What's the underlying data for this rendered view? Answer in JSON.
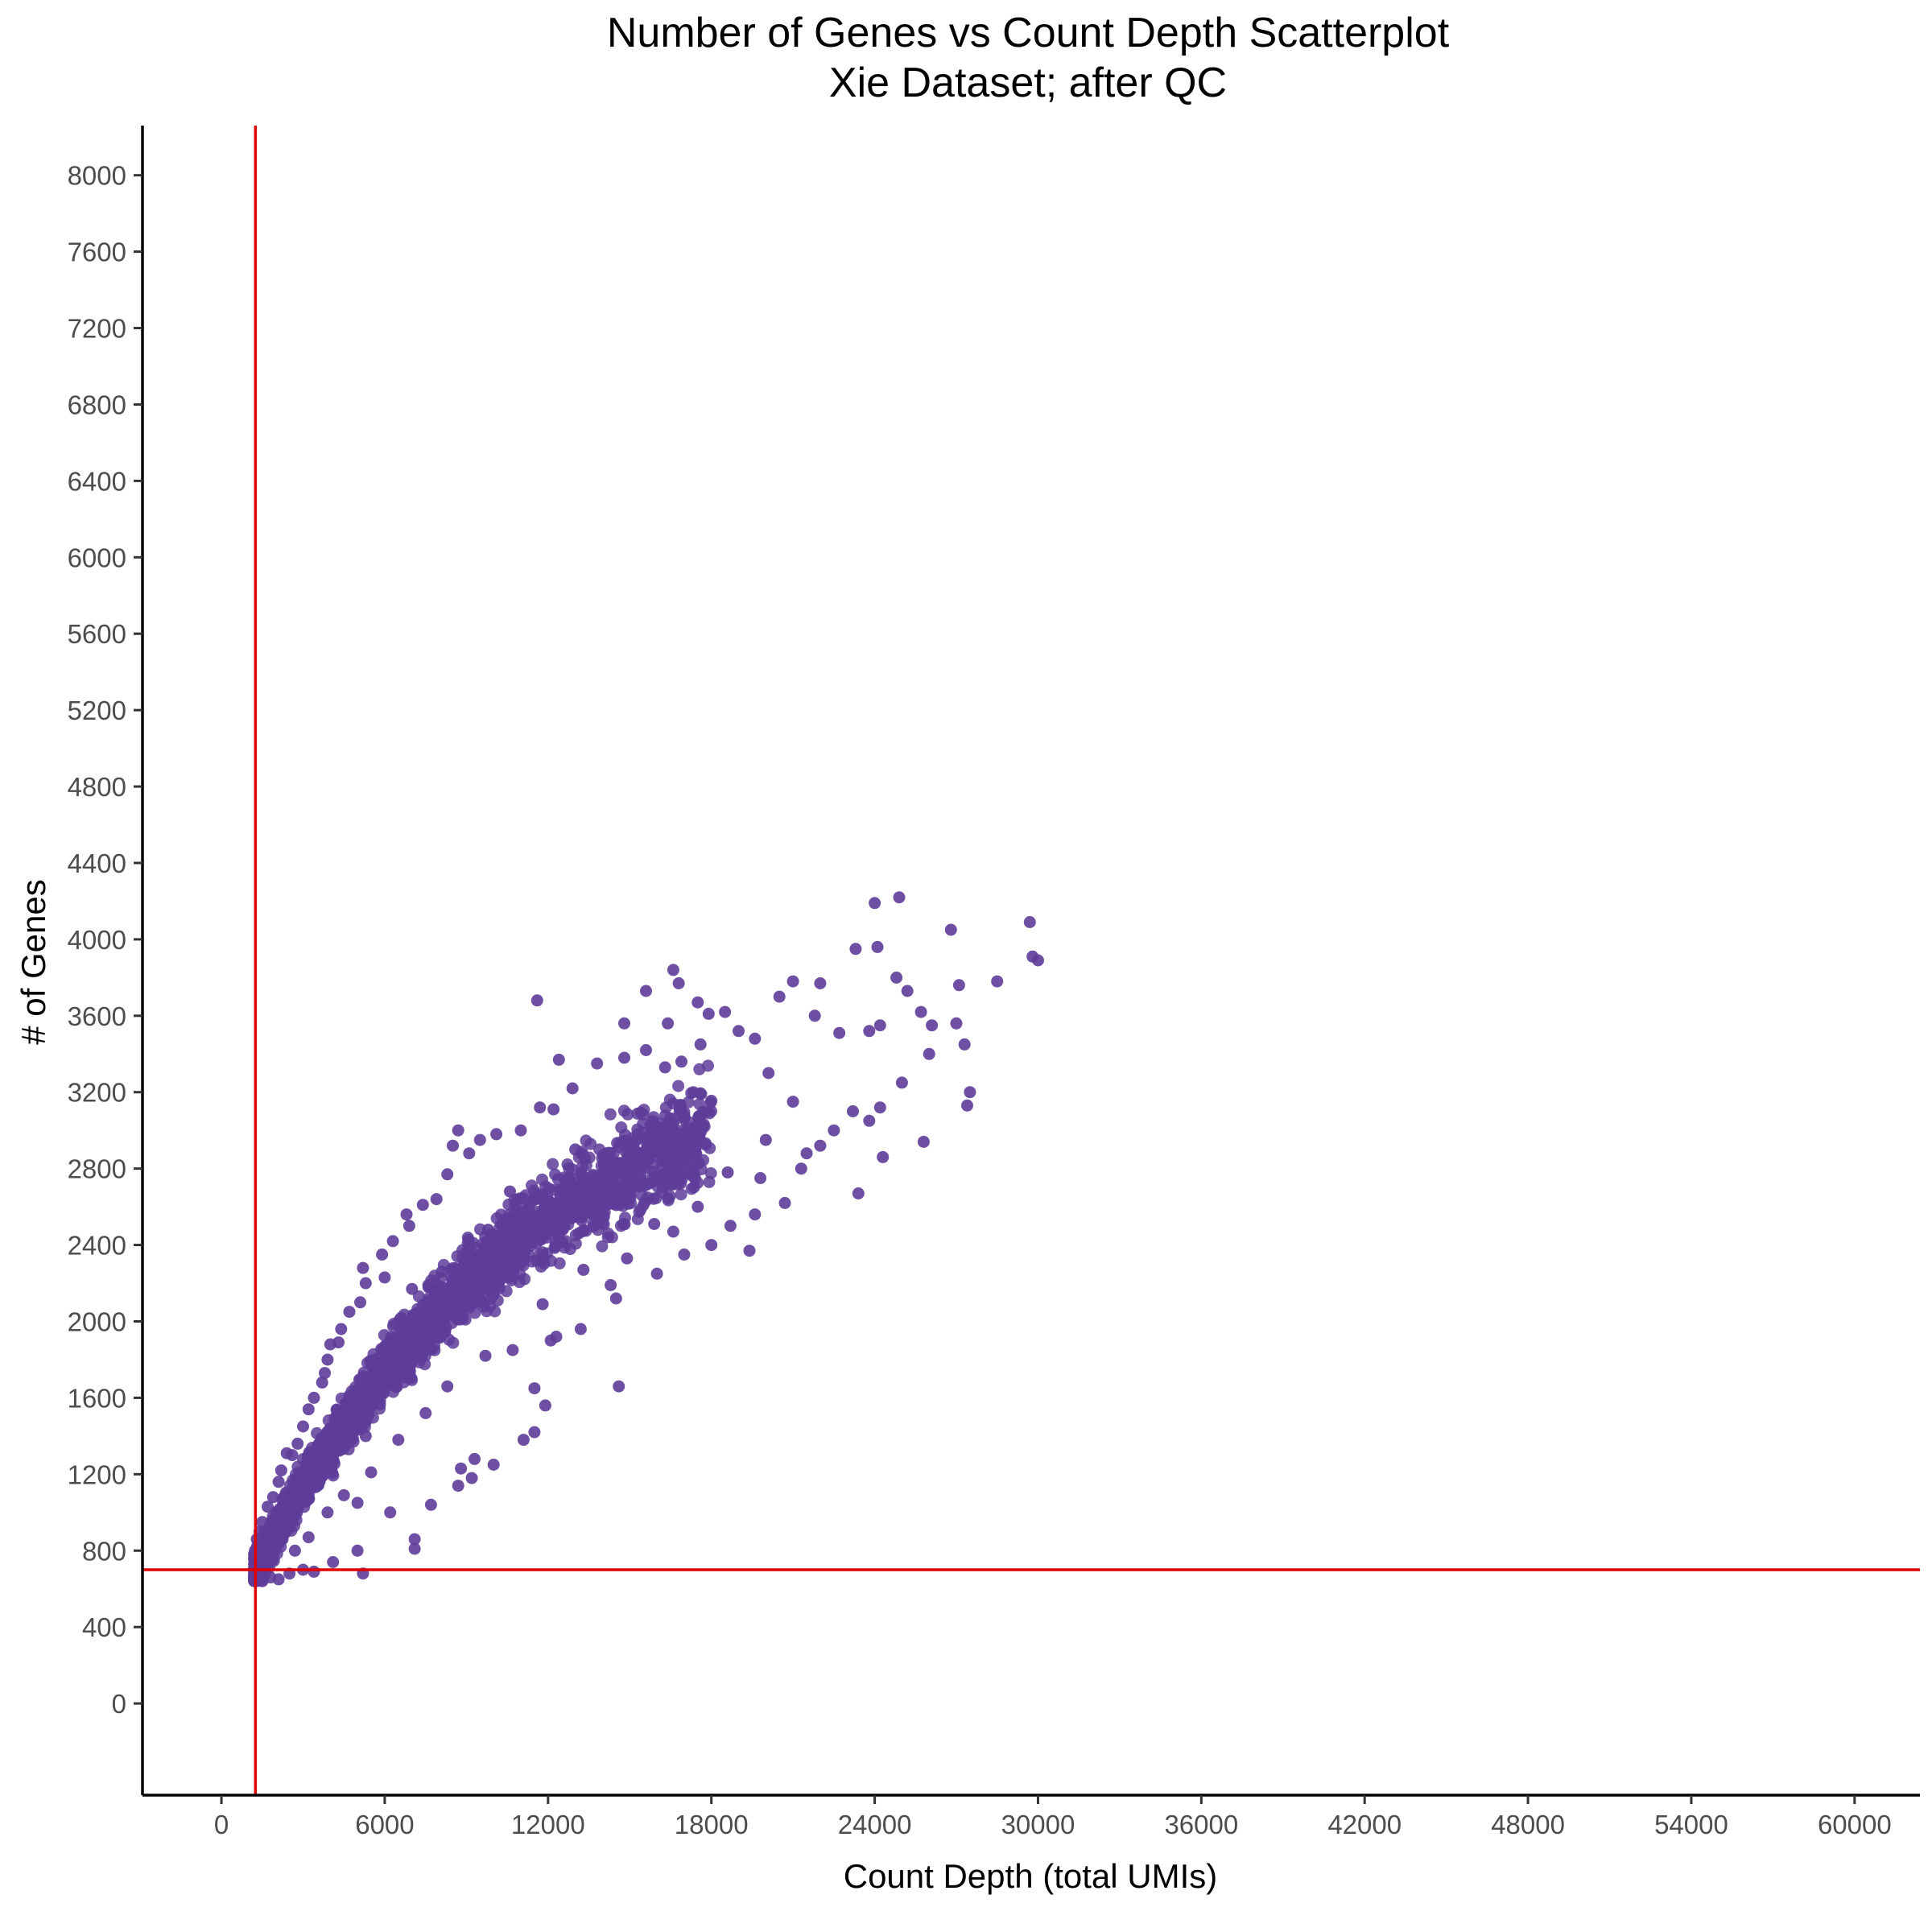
{
  "chart_data": {
    "type": "scatter",
    "title": "Number of Genes vs Count Depth Scatterplot",
    "subtitle": "Xie Dataset; after QC",
    "xlabel": "Count Depth (total UMIs)",
    "ylabel": "# of Genes",
    "xlim": [
      -2900,
      62400
    ],
    "ylim": [
      -480,
      8260
    ],
    "x_ticks": [
      0,
      6000,
      12000,
      18000,
      24000,
      30000,
      36000,
      42000,
      48000,
      54000,
      60000
    ],
    "y_ticks": [
      0,
      400,
      800,
      1200,
      1600,
      2000,
      2400,
      2800,
      3200,
      3600,
      4000,
      4400,
      4800,
      5200,
      5600,
      6000,
      6400,
      6800,
      7200,
      7600,
      8000
    ],
    "grid": false,
    "legend": "none",
    "point_color": "#5e3c99",
    "reference_lines": [
      {
        "orientation": "vertical",
        "x": 1250,
        "color": "#e00000"
      },
      {
        "orientation": "horizontal",
        "y": 700,
        "color": "#e00000"
      }
    ],
    "dense_region": {
      "x_range": [
        1200,
        18000
      ],
      "y_range": [
        640,
        3300
      ],
      "trend": [
        [
          1300,
          700
        ],
        [
          3000,
          1150
        ],
        [
          6000,
          1750
        ],
        [
          9000,
          2200
        ],
        [
          12000,
          2550
        ],
        [
          15000,
          2800
        ],
        [
          18000,
          3000
        ]
      ]
    },
    "points": [
      [
        1300,
        650
      ],
      [
        1500,
        640
      ],
      [
        1800,
        660
      ],
      [
        2100,
        650
      ],
      [
        2500,
        680
      ],
      [
        3000,
        700
      ],
      [
        3400,
        690
      ],
      [
        2000,
        960
      ],
      [
        4100,
        740
      ],
      [
        5000,
        800
      ],
      [
        5200,
        680
      ],
      [
        7100,
        810
      ],
      [
        7100,
        860
      ],
      [
        5000,
        1050
      ],
      [
        6200,
        1000
      ],
      [
        7700,
        1040
      ],
      [
        8700,
        1140
      ],
      [
        9200,
        1180
      ],
      [
        8800,
        1230
      ],
      [
        9300,
        1280
      ],
      [
        10000,
        1250
      ],
      [
        11100,
        1380
      ],
      [
        11500,
        1420
      ],
      [
        11900,
        1560
      ],
      [
        14600,
        1660
      ],
      [
        11500,
        1650
      ],
      [
        12100,
        1900
      ],
      [
        12300,
        1920
      ],
      [
        13200,
        1960
      ],
      [
        14500,
        2120
      ],
      [
        14300,
        2190
      ],
      [
        16000,
        2250
      ],
      [
        17000,
        2350
      ],
      [
        18000,
        2400
      ],
      [
        19400,
        2370
      ],
      [
        18700,
        2500
      ],
      [
        19600,
        2560
      ],
      [
        20700,
        2620
      ],
      [
        21500,
        2880
      ],
      [
        23400,
        2670
      ],
      [
        22000,
        2920
      ],
      [
        22500,
        3000
      ],
      [
        23800,
        3050
      ],
      [
        24200,
        3120
      ],
      [
        25000,
        3250
      ],
      [
        24300,
        2860
      ],
      [
        25800,
        2940
      ],
      [
        23200,
        3100
      ],
      [
        27400,
        3130
      ],
      [
        27500,
        3200
      ],
      [
        26000,
        3400
      ],
      [
        26100,
        3550
      ],
      [
        27000,
        3560
      ],
      [
        27300,
        3450
      ],
      [
        25700,
        3620
      ],
      [
        24200,
        3550
      ],
      [
        24800,
        3800
      ],
      [
        25200,
        3730
      ],
      [
        27100,
        3760
      ],
      [
        28500,
        3780
      ],
      [
        29800,
        3910
      ],
      [
        30000,
        3890
      ],
      [
        29700,
        4090
      ],
      [
        26800,
        4050
      ],
      [
        24100,
        3960
      ],
      [
        23300,
        3950
      ],
      [
        24000,
        4190
      ],
      [
        24900,
        4220
      ],
      [
        22000,
        3770
      ],
      [
        21000,
        3780
      ],
      [
        20500,
        3700
      ],
      [
        21800,
        3600
      ],
      [
        22700,
        3510
      ],
      [
        23800,
        3520
      ],
      [
        19600,
        3480
      ],
      [
        19000,
        3520
      ],
      [
        18500,
        3620
      ],
      [
        17900,
        3610
      ],
      [
        17600,
        3450
      ],
      [
        16900,
        3360
      ],
      [
        16300,
        3330
      ],
      [
        15600,
        3420
      ],
      [
        14800,
        3380
      ],
      [
        13800,
        3350
      ],
      [
        12900,
        3220
      ],
      [
        12200,
        3110
      ],
      [
        11700,
        3120
      ],
      [
        12400,
        3370
      ],
      [
        14800,
        3560
      ],
      [
        16400,
        3560
      ],
      [
        17500,
        3670
      ],
      [
        15600,
        3730
      ],
      [
        16600,
        3840
      ],
      [
        16800,
        3770
      ],
      [
        11600,
        3680
      ],
      [
        11000,
        3000
      ],
      [
        10100,
        2980
      ],
      [
        9500,
        2950
      ],
      [
        8500,
        2920
      ],
      [
        8700,
        3000
      ],
      [
        9100,
        2880
      ],
      [
        8300,
        2770
      ],
      [
        7900,
        2640
      ],
      [
        7400,
        2610
      ],
      [
        6800,
        2560
      ],
      [
        6900,
        2500
      ],
      [
        6300,
        2420
      ],
      [
        5900,
        2350
      ],
      [
        5200,
        2280
      ],
      [
        5300,
        2200
      ],
      [
        5100,
        2100
      ],
      [
        4700,
        2050
      ],
      [
        4400,
        1960
      ],
      [
        4300,
        1890
      ],
      [
        4000,
        1880
      ],
      [
        3900,
        1800
      ],
      [
        3800,
        1730
      ],
      [
        3700,
        1680
      ],
      [
        3400,
        1600
      ],
      [
        3200,
        1540
      ],
      [
        3000,
        1450
      ],
      [
        2800,
        1360
      ],
      [
        2600,
        1300
      ],
      [
        2400,
        1310
      ],
      [
        2200,
        1220
      ],
      [
        2100,
        1160
      ],
      [
        1900,
        1080
      ],
      [
        1700,
        1030
      ],
      [
        1500,
        950
      ],
      [
        1400,
        900
      ],
      [
        1300,
        860
      ],
      [
        6000,
        2230
      ],
      [
        7000,
        2170
      ],
      [
        6600,
        1950
      ],
      [
        8100,
        2260
      ],
      [
        9800,
        2480
      ],
      [
        10600,
        2680
      ],
      [
        13000,
        2900
      ],
      [
        15300,
        2980
      ],
      [
        20100,
        3300
      ],
      [
        21000,
        3150
      ],
      [
        20000,
        2950
      ],
      [
        18600,
        2780
      ],
      [
        21300,
        2800
      ],
      [
        19800,
        2750
      ],
      [
        17500,
        2600
      ],
      [
        16600,
        2470
      ],
      [
        15900,
        2510
      ],
      [
        14900,
        2330
      ],
      [
        13300,
        2270
      ],
      [
        11800,
        2090
      ],
      [
        10700,
        1850
      ],
      [
        9700,
        1820
      ],
      [
        8300,
        1660
      ],
      [
        7500,
        1520
      ],
      [
        6500,
        1380
      ],
      [
        5500,
        1210
      ],
      [
        4500,
        1090
      ],
      [
        3900,
        1000
      ],
      [
        3200,
        870
      ],
      [
        2700,
        800
      ],
      [
        3500,
        1180
      ],
      [
        5300,
        1400
      ],
      [
        3600,
        1360
      ],
      [
        3100,
        1070
      ]
    ]
  }
}
